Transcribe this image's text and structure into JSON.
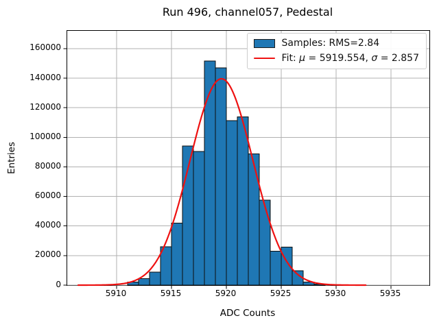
{
  "title": "Run 496, channel057, Pedestal",
  "x_axis": {
    "label": "ADC Counts",
    "ticks": [
      5910,
      5915,
      5920,
      5925,
      5930,
      5935
    ]
  },
  "y_axis": {
    "label": "Entries",
    "ticks": [
      0,
      20000,
      40000,
      60000,
      80000,
      100000,
      120000,
      140000,
      160000
    ]
  },
  "legend": {
    "samples_label": "Samples: RMS=2.84",
    "fit_label_prefix": "Fit: ",
    "fit_mu_symbol": "μ",
    "fit_mu_value": " = 5919.554, ",
    "fit_sigma_symbol": "σ",
    "fit_sigma_value": " = 2.857"
  },
  "chart_data": {
    "type": "bar",
    "subtype": "histogram",
    "title": "Run 496, channel057, Pedestal",
    "xlabel": "ADC Counts",
    "ylabel": "Entries",
    "xlim": [
      5905.5,
      5938.5
    ],
    "ylim": [
      0,
      172000
    ],
    "grid": true,
    "legend_position": "upper right",
    "bin_width": 1,
    "bin_edges": [
      5911,
      5912,
      5913,
      5914,
      5915,
      5916,
      5917,
      5918,
      5919,
      5920,
      5921,
      5922,
      5923,
      5924,
      5925,
      5926,
      5927,
      5928,
      5929
    ],
    "counts": [
      2100,
      4400,
      8800,
      26000,
      42000,
      94000,
      90500,
      151500,
      147000,
      111300,
      113900,
      88700,
      57500,
      23000,
      25800,
      9800,
      2200,
      700
    ],
    "fit": {
      "shape": "gaussian",
      "mu": 5919.554,
      "sigma": 2.857,
      "amplitude": 139600,
      "x_start": 5906.5,
      "x_end": 5932.8
    },
    "colors": {
      "bar_fill": "#1f77b4",
      "bar_edge": "#0d0d0d",
      "fit_line": "#ee1111",
      "grid": "#b0b0b0",
      "spine": "#000000"
    }
  }
}
